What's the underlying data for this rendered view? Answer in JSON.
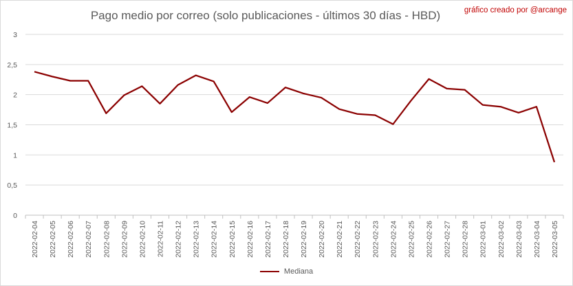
{
  "chart_data": {
    "type": "line",
    "title": "Pago medio por correo (solo publicaciones - últimos 30 días - HBD)",
    "credit": "gráfico creado por @arcange",
    "xlabel": "",
    "ylabel": "",
    "x": [
      "2022-02-04",
      "2022-02-05",
      "2022-02-06",
      "2022-02-07",
      "2022-02-08",
      "2022-02-09",
      "2022-02-10",
      "2022-02-11",
      "2022-02-12",
      "2022-02-13",
      "2022-02-14",
      "2022-02-15",
      "2022-02-16",
      "2022-02-17",
      "2022-02-18",
      "2022-02-19",
      "2022-02-20",
      "2022-02-21",
      "2022-02-22",
      "2022-02-23",
      "2022-02-24",
      "2022-02-25",
      "2022-02-26",
      "2022-02-27",
      "2022-02-28",
      "2022-03-01",
      "2022-03-02",
      "2022-03-03",
      "2022-03-04",
      "2022-03-05"
    ],
    "yticks": [
      "0",
      "0,5",
      "1",
      "1,5",
      "2",
      "2,5",
      "3"
    ],
    "ylim": [
      0,
      3
    ],
    "grid": true,
    "legend_position": "bottom",
    "series": [
      {
        "name": "Mediana",
        "color": "#8b0000",
        "values": [
          2.38,
          2.3,
          2.23,
          2.23,
          1.69,
          1.99,
          2.14,
          1.85,
          2.16,
          2.32,
          2.22,
          1.71,
          1.96,
          1.86,
          2.12,
          2.02,
          1.95,
          1.76,
          1.68,
          1.66,
          1.51,
          1.9,
          2.26,
          2.1,
          2.08,
          1.83,
          1.8,
          1.7,
          1.8,
          0.88
        ]
      }
    ]
  }
}
